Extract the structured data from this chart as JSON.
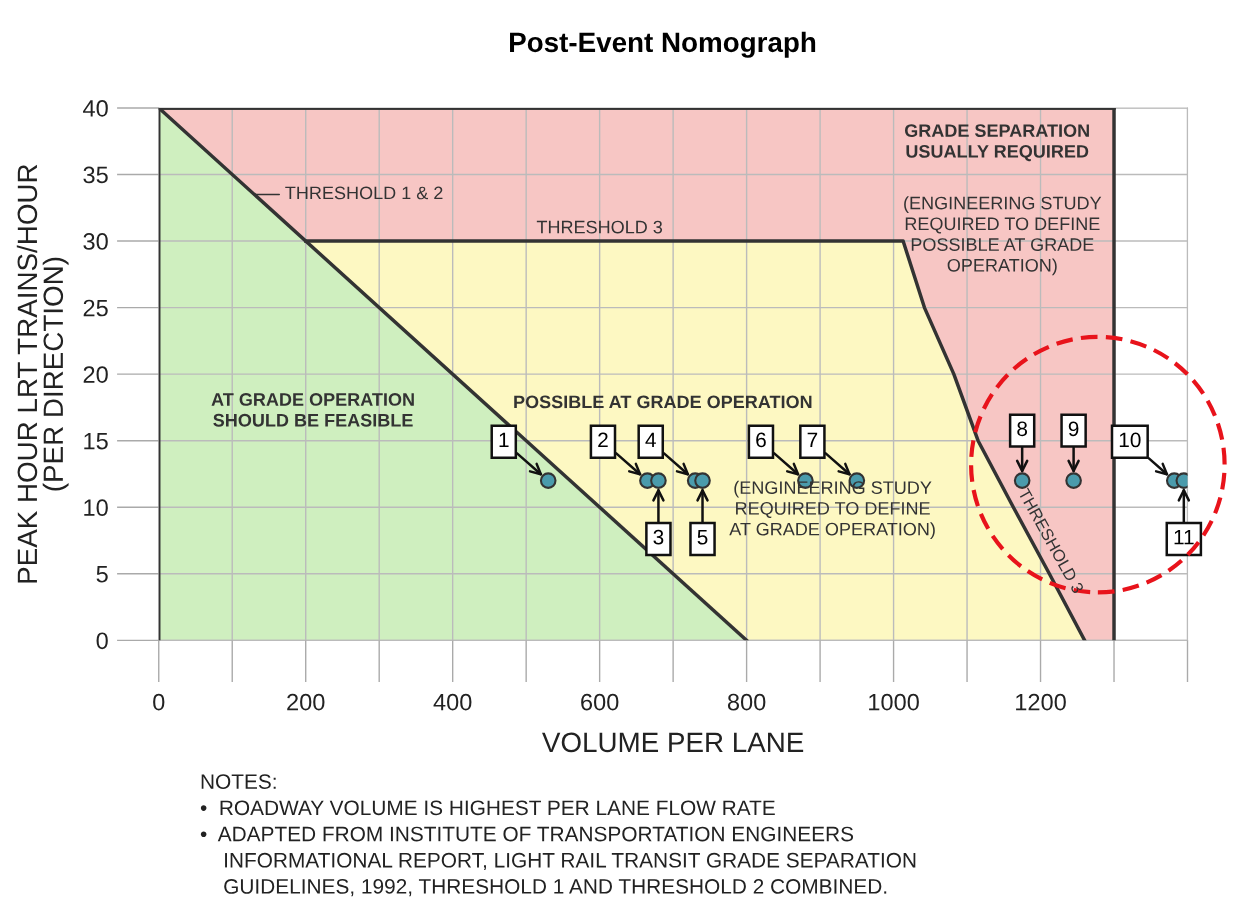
{
  "chart_data": {
    "type": "area",
    "title": "Post-Event Nomograph",
    "xlabel": "VOLUME PER LANE",
    "ylabel": "PEAK HOUR LRT TRAINS/HOUR\n(PER DIRECTION)",
    "xlim": [
      0,
      1400
    ],
    "ylim": [
      0,
      40
    ],
    "xticks": [
      0,
      {
        "value": 100,
        "label": null
      },
      200,
      {
        "value": 300,
        "label": null
      },
      400,
      {
        "value": 500,
        "label": null
      },
      600,
      {
        "value": 700,
        "label": null
      },
      800,
      {
        "value": 900,
        "label": null
      },
      1000,
      {
        "value": 1100,
        "label": null
      },
      1200,
      {
        "value": 1300,
        "label": null
      },
      {
        "value": 1400,
        "label": null
      }
    ],
    "yticks": [
      0,
      5,
      10,
      15,
      20,
      25,
      30,
      35,
      40
    ],
    "grid": true,
    "legend": false,
    "series": [
      {
        "color": "#f7c6c4",
        "x": [
          0,
          1300
        ],
        "values": [
          40,
          40
        ]
      },
      {
        "color": "#fdf8c2",
        "x": [
          200,
          1013,
          1042,
          1082,
          1115,
          1163,
          1212,
          1260
        ],
        "values": [
          30,
          30,
          25,
          20,
          15,
          10,
          5,
          0
        ]
      },
      {
        "color": "#cfefbf",
        "x": [
          0,
          800
        ],
        "values": [
          40,
          0
        ]
      },
      {
        "type": "scatter",
        "color": "#4a9bac",
        "marker": "circle",
        "x": [
          530,
          665,
          680,
          730,
          740,
          880,
          950,
          1175,
          1245,
          1382,
          1395
        ],
        "values": [
          12,
          12,
          12,
          12,
          12,
          12,
          12,
          12,
          12,
          12,
          12
        ]
      }
    ],
    "annotations": [
      {
        "text": "1",
        "x": 530,
        "y": 12
      },
      {
        "text": "2",
        "x": 665,
        "y": 12
      },
      {
        "text": "3",
        "x": 680,
        "y": 12
      },
      {
        "text": "4",
        "x": 730,
        "y": 12
      },
      {
        "text": "5",
        "x": 740,
        "y": 12
      },
      {
        "text": "6",
        "x": 880,
        "y": 12
      },
      {
        "text": "7",
        "x": 950,
        "y": 12
      },
      {
        "text": "8",
        "x": 1175,
        "y": 12
      },
      {
        "text": "9",
        "x": 1245,
        "y": 12
      },
      {
        "text": "10",
        "x": 1382,
        "y": 12
      },
      {
        "text": "11",
        "x": 1395,
        "y": 12
      },
      {
        "text": "THRESHOLD 1 & 2",
        "x": 130,
        "y": 33.5
      },
      {
        "text": "THRESHOLD 3",
        "x": 600,
        "y": 30
      },
      {
        "text": "THRESHOLD 3",
        "x": 1190,
        "y": 7
      },
      "AT GRADE OPERATION\nSHOULD BE FEASIBLE",
      "POSSIBLE AT GRADE OPERATION",
      "(ENGINEERING STUDY\nREQUIRED TO DEFINE\nAT GRADE OPERATION)",
      "GRADE SEPARATION\nUSUALLY REQUIRED",
      "(ENGINEERING STUDY\nREQUIRED TO DEFINE\nPOSSIBLE AT GRADE\nOPERATION)",
      "NOTES:\n•  ROADWAY VOLUME IS HIGHEST PER LANE FLOW RATE\n•  ADAPTED FROM INSTITUTE OF TRANSPORTATION ENGINEERS\n    INFORMATIONAL REPORT, LIGHT RAIL TRANSIT GRADE SEPARATION\n    GUIDELINES, 1992, THRESHOLD 1 AND THRESHOLD 2 COMBINED."
    ]
  }
}
